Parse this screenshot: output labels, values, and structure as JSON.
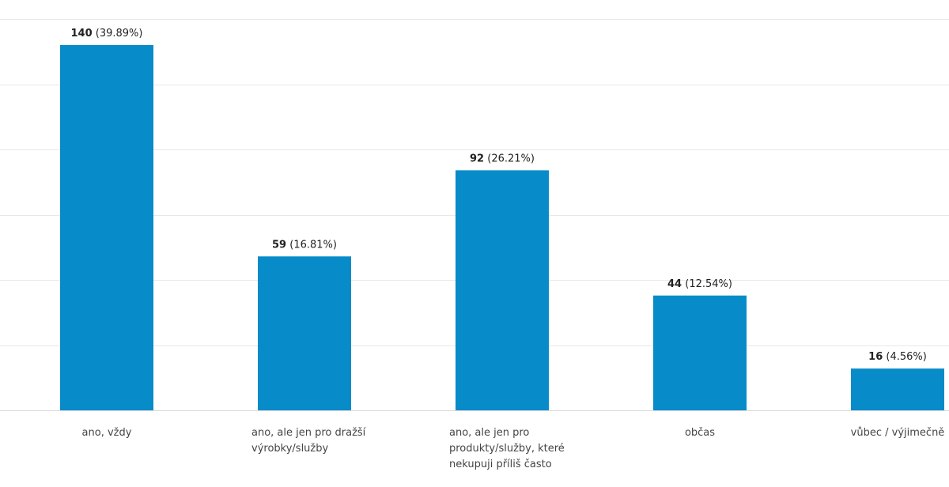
{
  "chart_data": {
    "type": "bar",
    "categories": [
      [
        "ano, vždy"
      ],
      [
        "ano, ale jen pro dražší",
        "výrobky/služby"
      ],
      [
        "ano, ale jen pro",
        "produkty/služby, které",
        "nekupuji příliš často"
      ],
      [
        "občas"
      ],
      [
        "vůbec / výjimečně"
      ]
    ],
    "values": [
      140,
      59,
      92,
      44,
      16
    ],
    "percent_labels": [
      "(39.89%)",
      "(16.81%)",
      "(26.21%)",
      "(12.54%)",
      "(4.56%)"
    ],
    "ylim": [
      0,
      150
    ],
    "grid": true,
    "title": "",
    "xlabel": "",
    "ylabel": "",
    "bar_color": "#078bc9"
  }
}
